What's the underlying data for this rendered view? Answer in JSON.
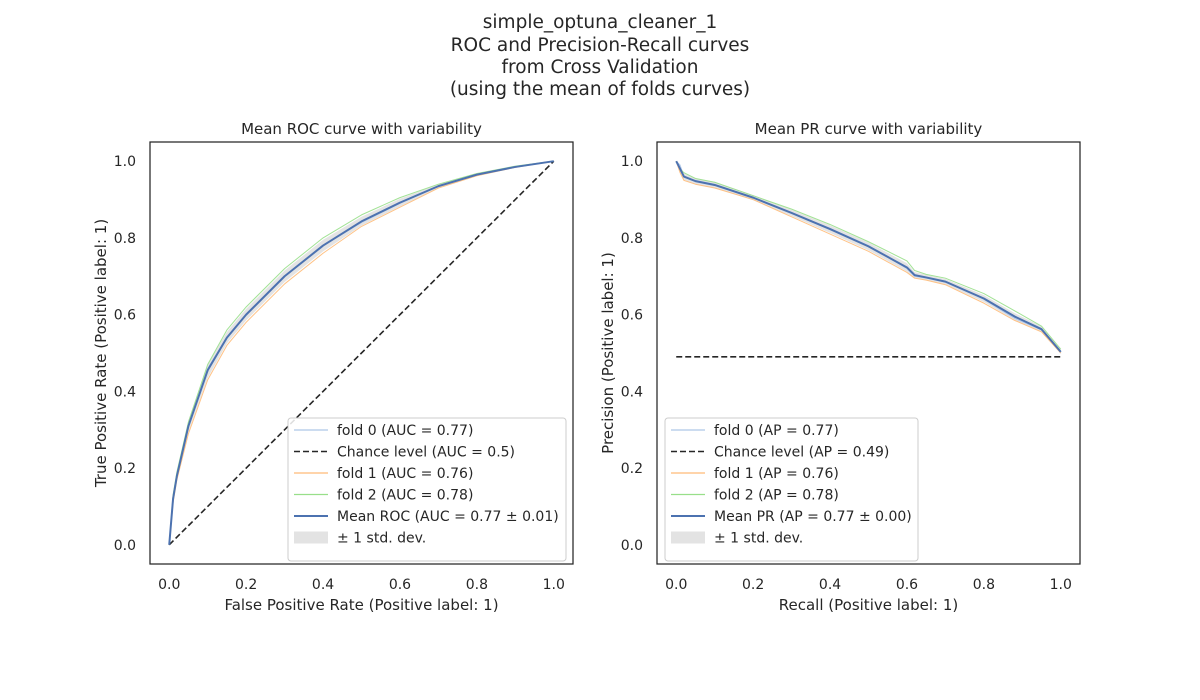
{
  "figure": {
    "title_lines": [
      "simple_optuna_cleaner_1",
      "ROC and Precision-Recall curves",
      "from Cross Validation",
      "(using the mean of folds curves)"
    ]
  },
  "colors": {
    "fold0": "#aec7e8",
    "fold1": "#ffbb78",
    "fold2": "#98df8a",
    "mean": "#4c72b0",
    "chance": "#262626",
    "std_band": "#c8c8c8"
  },
  "chart_data": [
    {
      "type": "line",
      "title": "Mean ROC curve with variability",
      "xlabel": "False Positive Rate (Positive label: 1)",
      "ylabel": "True Positive Rate (Positive label: 1)",
      "xlim": [
        -0.05,
        1.05
      ],
      "ylim": [
        -0.05,
        1.05
      ],
      "xticks": [
        "0.0",
        "0.2",
        "0.4",
        "0.6",
        "0.8",
        "1.0"
      ],
      "yticks": [
        "0.0",
        "0.2",
        "0.4",
        "0.6",
        "0.8",
        "1.0"
      ],
      "grid": false,
      "legend_position": "lower right",
      "legend": [
        {
          "key": "fold0",
          "label": "fold 0 (AUC = 0.77)",
          "style": "line"
        },
        {
          "key": "chance",
          "label": "Chance level (AUC = 0.5)",
          "style": "dashed"
        },
        {
          "key": "fold1",
          "label": "fold 1 (AUC = 0.76)",
          "style": "line"
        },
        {
          "key": "fold2",
          "label": "fold 2 (AUC = 0.78)",
          "style": "line"
        },
        {
          "key": "mean",
          "label": "Mean ROC (AUC = 0.77 ± 0.01)",
          "style": "thick"
        },
        {
          "key": "std_band",
          "label": "± 1 std. dev.",
          "style": "patch"
        }
      ],
      "series": [
        {
          "name": "fold 0 (AUC = 0.77)",
          "key": "fold0",
          "x": [
            0.0,
            0.01,
            0.02,
            0.05,
            0.1,
            0.15,
            0.2,
            0.3,
            0.4,
            0.5,
            0.6,
            0.7,
            0.8,
            0.9,
            1.0
          ],
          "y": [
            0.0,
            0.12,
            0.18,
            0.31,
            0.46,
            0.54,
            0.6,
            0.7,
            0.78,
            0.84,
            0.89,
            0.935,
            0.965,
            0.985,
            1.0
          ]
        },
        {
          "name": "fold 1 (AUC = 0.76)",
          "key": "fold1",
          "x": [
            0.0,
            0.01,
            0.02,
            0.05,
            0.1,
            0.15,
            0.2,
            0.3,
            0.4,
            0.5,
            0.6,
            0.7,
            0.8,
            0.9,
            1.0
          ],
          "y": [
            0.0,
            0.11,
            0.17,
            0.29,
            0.43,
            0.52,
            0.58,
            0.68,
            0.76,
            0.83,
            0.88,
            0.93,
            0.962,
            0.984,
            1.0
          ]
        },
        {
          "name": "fold 2 (AUC = 0.78)",
          "key": "fold2",
          "x": [
            0.0,
            0.01,
            0.02,
            0.05,
            0.1,
            0.15,
            0.2,
            0.3,
            0.4,
            0.5,
            0.6,
            0.7,
            0.8,
            0.9,
            1.0
          ],
          "y": [
            0.0,
            0.13,
            0.19,
            0.32,
            0.47,
            0.56,
            0.62,
            0.72,
            0.8,
            0.86,
            0.905,
            0.94,
            0.968,
            0.987,
            1.0
          ]
        },
        {
          "name": "Chance level (AUC = 0.5)",
          "key": "chance",
          "dashed": true,
          "x": [
            0.0,
            1.0
          ],
          "y": [
            0.0,
            1.0
          ]
        },
        {
          "name": "Mean ROC (AUC = 0.77 ± 0.01)",
          "key": "mean",
          "mean": true,
          "x": [
            0.0,
            0.01,
            0.02,
            0.05,
            0.1,
            0.15,
            0.2,
            0.3,
            0.4,
            0.5,
            0.6,
            0.7,
            0.8,
            0.9,
            1.0
          ],
          "y": [
            0.0,
            0.12,
            0.18,
            0.31,
            0.455,
            0.54,
            0.6,
            0.7,
            0.78,
            0.843,
            0.892,
            0.935,
            0.965,
            0.985,
            1.0
          ],
          "lower": [
            0.0,
            0.11,
            0.17,
            0.295,
            0.435,
            0.525,
            0.585,
            0.685,
            0.765,
            0.832,
            0.882,
            0.93,
            0.962,
            0.984,
            1.0
          ],
          "upper": [
            0.0,
            0.13,
            0.19,
            0.325,
            0.47,
            0.555,
            0.615,
            0.715,
            0.795,
            0.855,
            0.902,
            0.94,
            0.968,
            0.987,
            1.0
          ]
        }
      ]
    },
    {
      "type": "line",
      "title": "Mean PR curve with variability",
      "xlabel": "Recall (Positive label: 1)",
      "ylabel": "Precision (Positive label: 1)",
      "xlim": [
        -0.05,
        1.05
      ],
      "ylim": [
        -0.05,
        1.05
      ],
      "xticks": [
        "0.0",
        "0.2",
        "0.4",
        "0.6",
        "0.8",
        "1.0"
      ],
      "yticks": [
        "0.0",
        "0.2",
        "0.4",
        "0.6",
        "0.8",
        "1.0"
      ],
      "grid": false,
      "legend_position": "lower left",
      "legend": [
        {
          "key": "fold0",
          "label": "fold 0 (AP = 0.77)",
          "style": "line"
        },
        {
          "key": "chance",
          "label": "Chance level (AP = 0.49)",
          "style": "dashed"
        },
        {
          "key": "fold1",
          "label": "fold 1 (AP = 0.76)",
          "style": "line"
        },
        {
          "key": "fold2",
          "label": "fold 2 (AP = 0.78)",
          "style": "line"
        },
        {
          "key": "mean",
          "label": "Mean PR (AP = 0.77 ± 0.00)",
          "style": "thick"
        },
        {
          "key": "std_band",
          "label": "± 1 std. dev.",
          "style": "patch"
        }
      ],
      "series": [
        {
          "name": "fold 0 (AP = 0.77)",
          "key": "fold0",
          "x": [
            0.0,
            0.01,
            0.02,
            0.05,
            0.1,
            0.2,
            0.3,
            0.4,
            0.5,
            0.6,
            0.62,
            0.65,
            0.7,
            0.8,
            0.88,
            0.95,
            1.0
          ],
          "y": [
            1.0,
            0.99,
            0.96,
            0.95,
            0.94,
            0.905,
            0.865,
            0.825,
            0.78,
            0.72,
            0.7,
            0.695,
            0.685,
            0.64,
            0.59,
            0.56,
            0.5
          ]
        },
        {
          "name": "fold 1 (AP = 0.76)",
          "key": "fold1",
          "x": [
            0.0,
            0.01,
            0.02,
            0.05,
            0.1,
            0.2,
            0.3,
            0.4,
            0.5,
            0.6,
            0.62,
            0.65,
            0.7,
            0.8,
            0.88,
            0.95,
            1.0
          ],
          "y": [
            1.0,
            0.97,
            0.95,
            0.94,
            0.93,
            0.9,
            0.855,
            0.81,
            0.765,
            0.71,
            0.695,
            0.69,
            0.678,
            0.63,
            0.585,
            0.555,
            0.5
          ]
        },
        {
          "name": "fold 2 (AP = 0.78)",
          "key": "fold2",
          "x": [
            0.0,
            0.01,
            0.02,
            0.05,
            0.1,
            0.2,
            0.3,
            0.4,
            0.5,
            0.6,
            0.62,
            0.65,
            0.7,
            0.8,
            0.88,
            0.95,
            1.0
          ],
          "y": [
            1.0,
            0.98,
            0.97,
            0.955,
            0.945,
            0.91,
            0.875,
            0.835,
            0.79,
            0.74,
            0.715,
            0.705,
            0.695,
            0.655,
            0.61,
            0.57,
            0.51
          ]
        },
        {
          "name": "Chance level (AP = 0.49)",
          "key": "chance",
          "dashed": true,
          "x": [
            0.0,
            1.0
          ],
          "y": [
            0.49,
            0.49
          ]
        },
        {
          "name": "Mean PR (AP = 0.77 ± 0.00)",
          "key": "mean",
          "mean": true,
          "x": [
            0.0,
            0.01,
            0.02,
            0.05,
            0.1,
            0.2,
            0.3,
            0.4,
            0.5,
            0.6,
            0.62,
            0.65,
            0.7,
            0.8,
            0.88,
            0.95,
            1.0
          ],
          "y": [
            1.0,
            0.98,
            0.96,
            0.948,
            0.938,
            0.905,
            0.865,
            0.823,
            0.778,
            0.723,
            0.703,
            0.697,
            0.686,
            0.642,
            0.595,
            0.562,
            0.503
          ],
          "lower": [
            1.0,
            0.97,
            0.952,
            0.94,
            0.93,
            0.898,
            0.857,
            0.813,
            0.768,
            0.712,
            0.695,
            0.69,
            0.679,
            0.633,
            0.586,
            0.555,
            0.498
          ],
          "upper": [
            1.0,
            0.99,
            0.968,
            0.956,
            0.946,
            0.912,
            0.873,
            0.833,
            0.788,
            0.734,
            0.711,
            0.704,
            0.693,
            0.651,
            0.604,
            0.569,
            0.508
          ]
        }
      ]
    }
  ]
}
